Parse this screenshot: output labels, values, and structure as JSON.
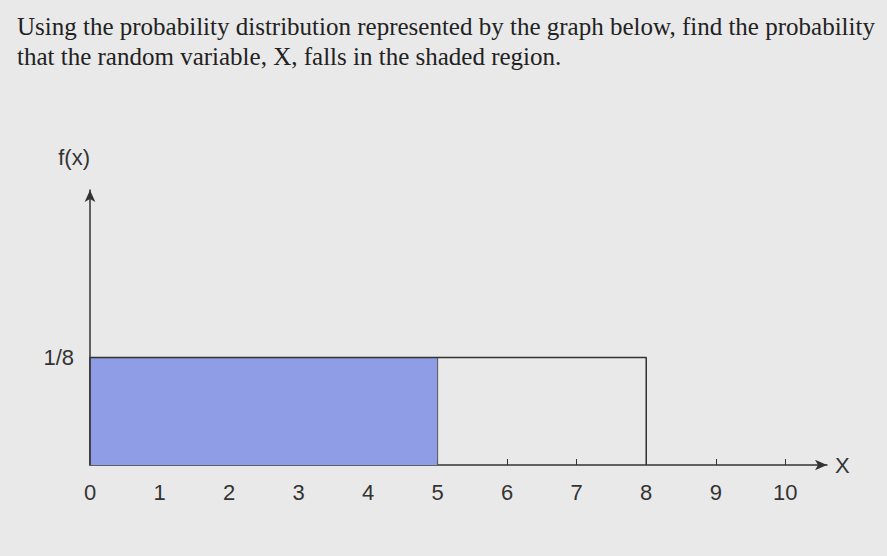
{
  "chart_data": {
    "type": "uniform_density",
    "title": "Using the probability distribution represented by the graph below, find the probability that the random variable, X, falls in the shaded region.",
    "xlabel": "X",
    "ylabel": "f(x)",
    "x": [
      0,
      8
    ],
    "values": [
      0.125,
      0.125
    ],
    "shaded_x": [
      0,
      5
    ],
    "color": "#8e9de6",
    "xlim": [
      0,
      10.6
    ],
    "xticks": [
      0,
      1,
      2,
      3,
      4,
      5,
      6,
      7,
      8,
      9,
      10
    ],
    "ylim": [
      0,
      0.32
    ],
    "yticks": [
      {
        "value": 0.125,
        "label": "1/8"
      }
    ],
    "grid": false
  }
}
